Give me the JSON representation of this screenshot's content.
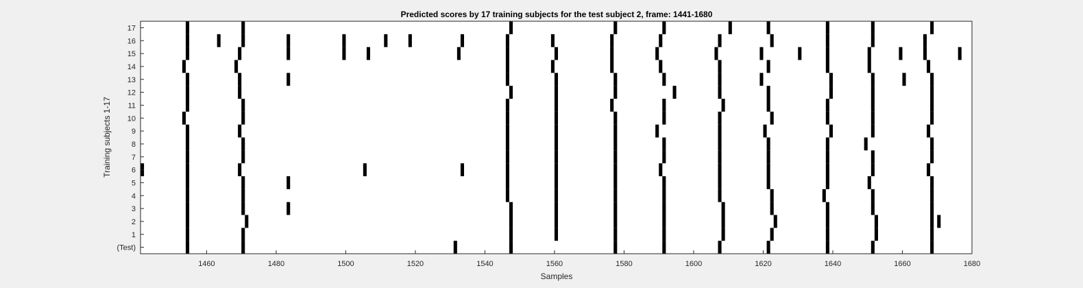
{
  "chart_data": {
    "type": "heatmap",
    "title": "Predicted scores by 17 training subjects for the test subject 2, frame: 1441-1680",
    "xlabel": "Samples",
    "ylabel": "Training subjects 1-17",
    "xlim": [
      1441,
      1680
    ],
    "x_ticks": [
      1460,
      1480,
      1500,
      1520,
      1540,
      1560,
      1580,
      1600,
      1620,
      1640,
      1660,
      1680
    ],
    "row_labels": [
      "(Test)",
      "1",
      "2",
      "3",
      "4",
      "5",
      "6",
      "7",
      "8",
      "9",
      "10",
      "11",
      "12",
      "13",
      "14",
      "15",
      "16",
      "17"
    ],
    "marker_color": "#000000",
    "background_color": "#ffffff",
    "rows": [
      {
        "label": "(Test)",
        "events": [
          1454,
          1470,
          1531,
          1547,
          1577,
          1591,
          1607,
          1621,
          1638,
          1651,
          1668
        ]
      },
      {
        "label": "1",
        "events": [
          1454,
          1470,
          1547,
          1560,
          1577,
          1591,
          1608,
          1622,
          1638,
          1652,
          1668
        ]
      },
      {
        "label": "2",
        "events": [
          1454,
          1471,
          1547,
          1560,
          1577,
          1591,
          1608,
          1623,
          1638,
          1652,
          1668,
          1670
        ]
      },
      {
        "label": "3",
        "events": [
          1454,
          1470,
          1483,
          1547,
          1560,
          1577,
          1591,
          1608,
          1622,
          1638,
          1651,
          1668
        ]
      },
      {
        "label": "4",
        "events": [
          1454,
          1470,
          1546,
          1560,
          1577,
          1591,
          1607,
          1622,
          1637,
          1651,
          1668
        ]
      },
      {
        "label": "5",
        "events": [
          1454,
          1470,
          1483,
          1546,
          1560,
          1577,
          1591,
          1607,
          1621,
          1638,
          1650,
          1668
        ]
      },
      {
        "label": "6",
        "events": [
          1441,
          1454,
          1469,
          1505,
          1533,
          1546,
          1560,
          1577,
          1590,
          1607,
          1621,
          1638,
          1651,
          1667
        ]
      },
      {
        "label": "7",
        "events": [
          1454,
          1470,
          1546,
          1560,
          1577,
          1591,
          1607,
          1621,
          1638,
          1651,
          1668
        ]
      },
      {
        "label": "8",
        "events": [
          1454,
          1470,
          1546,
          1560,
          1577,
          1591,
          1607,
          1621,
          1638,
          1649,
          1668
        ]
      },
      {
        "label": "9",
        "events": [
          1454,
          1469,
          1546,
          1560,
          1577,
          1589,
          1607,
          1620,
          1639,
          1651,
          1667
        ]
      },
      {
        "label": "10",
        "events": [
          1453,
          1470,
          1546,
          1560,
          1577,
          1591,
          1607,
          1622,
          1638,
          1651,
          1668
        ]
      },
      {
        "label": "11",
        "events": [
          1454,
          1470,
          1546,
          1560,
          1576,
          1591,
          1608,
          1621,
          1638,
          1651,
          1668
        ]
      },
      {
        "label": "12",
        "events": [
          1454,
          1469,
          1547,
          1560,
          1577,
          1594,
          1607,
          1621,
          1639,
          1651,
          1668
        ]
      },
      {
        "label": "13",
        "events": [
          1454,
          1469,
          1483,
          1546,
          1560,
          1577,
          1591,
          1607,
          1619,
          1639,
          1651,
          1660,
          1668
        ]
      },
      {
        "label": "14",
        "events": [
          1453,
          1468,
          1546,
          1559,
          1576,
          1590,
          1607,
          1621,
          1638,
          1650,
          1667
        ]
      },
      {
        "label": "15",
        "events": [
          1454,
          1469,
          1483,
          1499,
          1506,
          1532,
          1546,
          1560,
          1576,
          1589,
          1606,
          1619,
          1630,
          1638,
          1650,
          1659,
          1666,
          1676
        ]
      },
      {
        "label": "16",
        "events": [
          1454,
          1463,
          1470,
          1483,
          1499,
          1511,
          1518,
          1533,
          1546,
          1559,
          1576,
          1590,
          1607,
          1622,
          1638,
          1651,
          1666
        ]
      },
      {
        "label": "17",
        "events": [
          1454,
          1470,
          1547,
          1577,
          1591,
          1610,
          1621,
          1638,
          1651,
          1668
        ]
      }
    ]
  }
}
